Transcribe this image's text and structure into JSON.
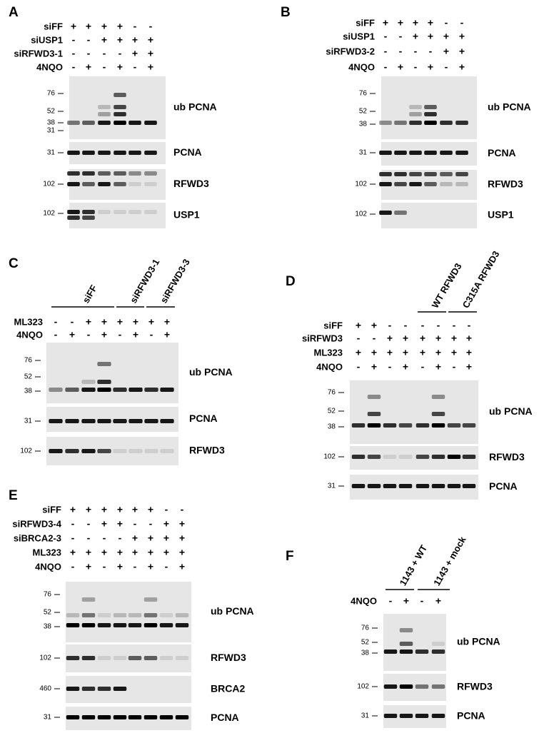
{
  "panels": [
    {
      "label": "A",
      "conditions": [
        {
          "name": "siFF",
          "signs": [
            "+",
            "+",
            "+",
            "+",
            "-",
            "-"
          ]
        },
        {
          "name": "siUSP1",
          "signs": [
            "-",
            "-",
            "+",
            "+",
            "+",
            "+"
          ]
        },
        {
          "name": "siRFWD3-1",
          "signs": [
            "-",
            "-",
            "-",
            "-",
            "+",
            "+"
          ]
        },
        {
          "name": "4NQO",
          "signs": [
            "-",
            "+",
            "-",
            "+",
            "-",
            "+"
          ]
        }
      ],
      "groups": [],
      "blots": [
        {
          "name": "ub PCNA",
          "markers": [
            "76",
            "52",
            "38",
            "31"
          ]
        },
        {
          "name": "PCNA",
          "markers": [
            "31"
          ]
        },
        {
          "name": "RFWD3",
          "markers": [
            "102"
          ]
        },
        {
          "name": "USP1",
          "markers": [
            "102"
          ]
        }
      ]
    },
    {
      "label": "B",
      "conditions": [
        {
          "name": "siFF",
          "signs": [
            "+",
            "+",
            "+",
            "+",
            "-",
            "-"
          ]
        },
        {
          "name": "siUSP1",
          "signs": [
            "-",
            "-",
            "+",
            "+",
            "+",
            "+"
          ]
        },
        {
          "name": "siRFWD3-2",
          "signs": [
            "-",
            "-",
            "-",
            "-",
            "+",
            "+"
          ]
        },
        {
          "name": "4NQO",
          "signs": [
            "-",
            "+",
            "-",
            "+",
            "-",
            "+"
          ]
        }
      ],
      "groups": [],
      "blots": [
        {
          "name": "ub PCNA",
          "markers": [
            "76",
            "52",
            "38"
          ]
        },
        {
          "name": "PCNA",
          "markers": [
            "31"
          ]
        },
        {
          "name": "RFWD3",
          "markers": [
            "102"
          ]
        },
        {
          "name": "USP1",
          "markers": [
            "102"
          ]
        }
      ]
    },
    {
      "label": "C",
      "conditions": [
        {
          "name": "ML323",
          "signs": [
            "-",
            "-",
            "+",
            "+",
            "+",
            "+",
            "+",
            "+"
          ]
        },
        {
          "name": "4NQO",
          "signs": [
            "-",
            "+",
            "-",
            "+",
            "-",
            "+",
            "-",
            "+"
          ]
        }
      ],
      "groups": [
        "siFF",
        "siRFWD3-1",
        "siRFWD3-3"
      ],
      "blots": [
        {
          "name": "ub PCNA",
          "markers": [
            "76",
            "52",
            "38"
          ]
        },
        {
          "name": "PCNA",
          "markers": [
            "31"
          ]
        },
        {
          "name": "RFWD3",
          "markers": [
            "102"
          ]
        }
      ]
    },
    {
      "label": "D",
      "conditions": [
        {
          "name": "siFF",
          "signs": [
            "+",
            "+",
            "-",
            "-",
            "-",
            "-",
            "-",
            "-"
          ]
        },
        {
          "name": "siRFWD3",
          "signs": [
            "-",
            "-",
            "+",
            "+",
            "+",
            "+",
            "+",
            "+"
          ]
        },
        {
          "name": "ML323",
          "signs": [
            "+",
            "+",
            "+",
            "+",
            "+",
            "+",
            "+",
            "+"
          ]
        },
        {
          "name": "4NQO",
          "signs": [
            "-",
            "+",
            "-",
            "+",
            "-",
            "+",
            "-",
            "+"
          ]
        }
      ],
      "groups": [
        "WT RFWD3",
        "C315A RFWD3"
      ],
      "blots": [
        {
          "name": "ub PCNA",
          "markers": [
            "76",
            "52",
            "38"
          ]
        },
        {
          "name": "RFWD3",
          "markers": [
            "102"
          ]
        },
        {
          "name": "PCNA",
          "markers": [
            "31"
          ]
        }
      ]
    },
    {
      "label": "E",
      "conditions": [
        {
          "name": "siFF",
          "signs": [
            "+",
            "+",
            "+",
            "+",
            "+",
            "+",
            "-",
            "-"
          ]
        },
        {
          "name": "siRFWD3-4",
          "signs": [
            "-",
            "-",
            "+",
            "+",
            "-",
            "-",
            "+",
            "+"
          ]
        },
        {
          "name": "siBRCA2-3",
          "signs": [
            "-",
            "-",
            "-",
            "-",
            "+",
            "+",
            "+",
            "+"
          ]
        },
        {
          "name": "ML323",
          "signs": [
            "+",
            "+",
            "+",
            "+",
            "+",
            "+",
            "+",
            "+"
          ]
        },
        {
          "name": "4NQO",
          "signs": [
            "-",
            "+",
            "-",
            "+",
            "-",
            "+",
            "-",
            "+"
          ]
        }
      ],
      "groups": [],
      "blots": [
        {
          "name": "ub PCNA",
          "markers": [
            "76",
            "52",
            "38"
          ]
        },
        {
          "name": "RFWD3",
          "markers": [
            "102"
          ]
        },
        {
          "name": "BRCA2",
          "markers": [
            "460"
          ]
        },
        {
          "name": "PCNA",
          "markers": [
            "31"
          ]
        }
      ]
    },
    {
      "label": "F",
      "conditions": [
        {
          "name": "4NQO",
          "signs": [
            "-",
            "+",
            "-",
            "+"
          ]
        }
      ],
      "groups": [
        "1143 + WT",
        "1143 + mock"
      ],
      "blots": [
        {
          "name": "ub PCNA",
          "markers": [
            "76",
            "52",
            "38"
          ]
        },
        {
          "name": "RFWD3",
          "markers": [
            "102"
          ]
        },
        {
          "name": "PCNA",
          "markers": [
            "31"
          ]
        }
      ]
    }
  ]
}
